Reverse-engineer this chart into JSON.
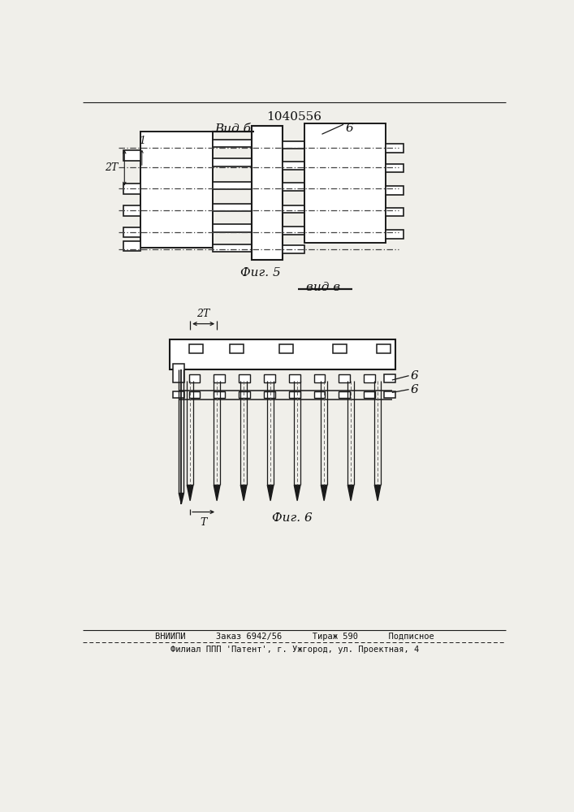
{
  "patent_number": "1040556",
  "fig5_label": "Фиг. 5",
  "fig6_label": "Фиг. 6",
  "vid_b_label": "Вид б",
  "vid_v_label": "вид в",
  "label_6_a": "6",
  "label_6_b": "6",
  "label_6_c": "6",
  "label_2t": "2Т",
  "label_t": "Т",
  "label_1": "1",
  "footer_line1": "ВНИИПИ      Заказ 6942/56      Тираж 590      Подписное",
  "footer_line2": "Филиал ППП 'Патент', г. Ужгород, ул. Проектная, 4",
  "bg_color": "#f0efea",
  "line_color": "#1a1a1a",
  "text_color": "#111111"
}
